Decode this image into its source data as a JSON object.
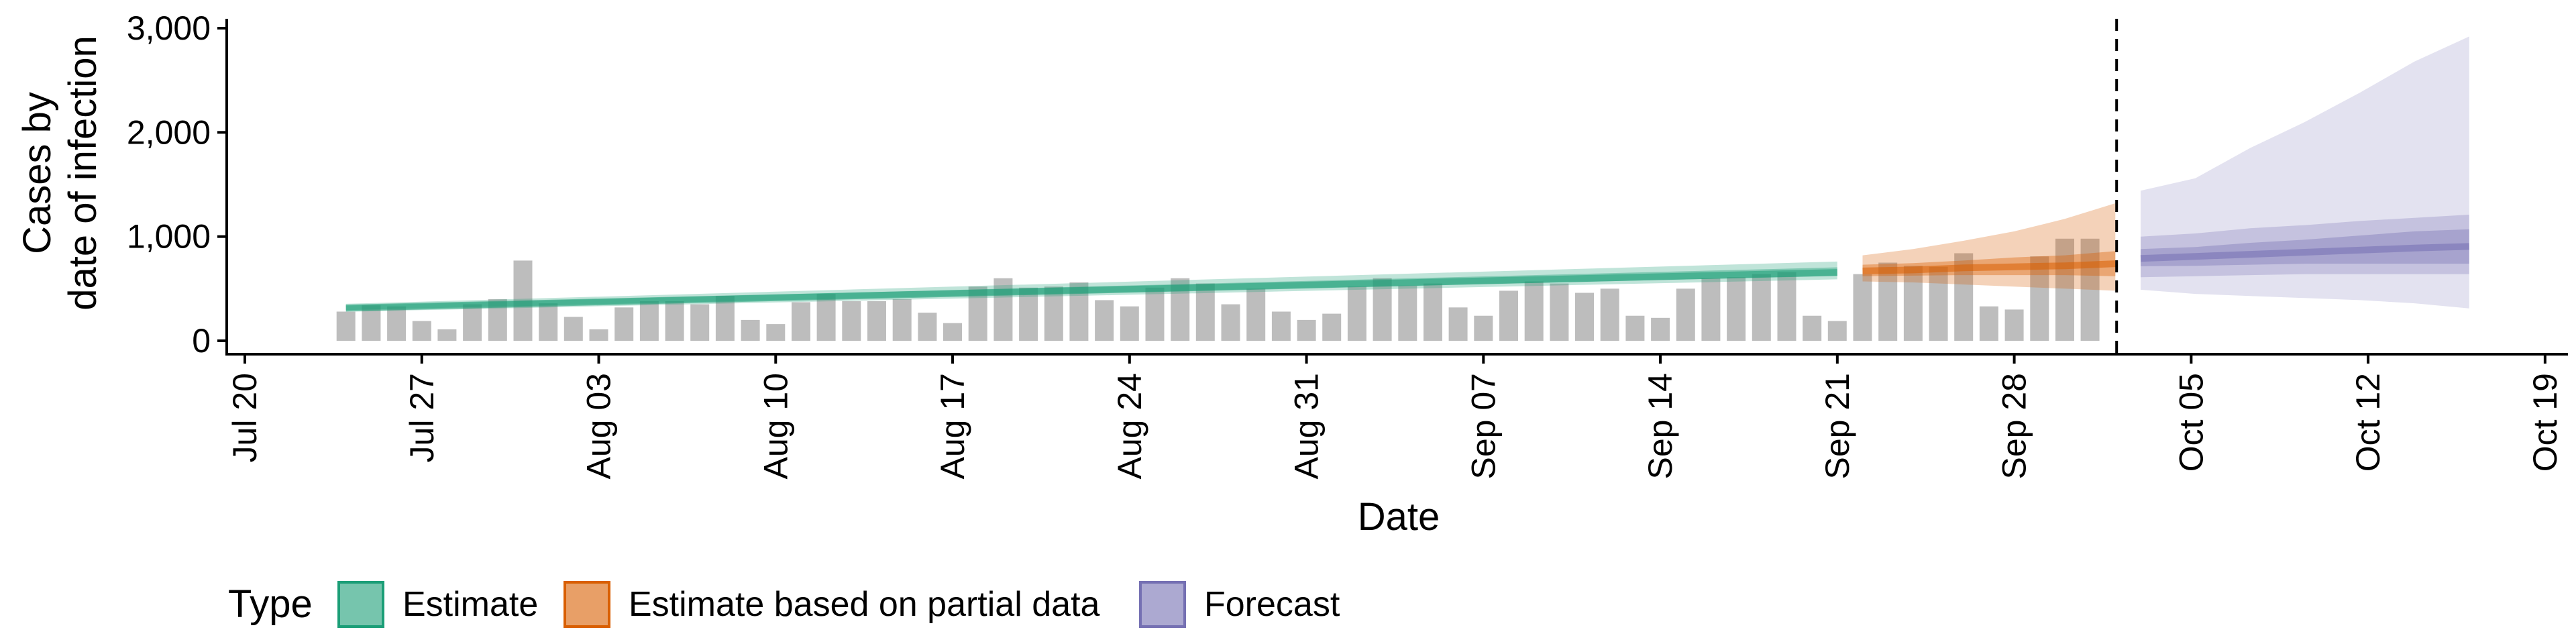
{
  "chart_data": {
    "type": "bar",
    "xlabel": "Date",
    "ylabel_lines": [
      "Cases by",
      "date of infection"
    ],
    "xlim": [
      "2020-07-19",
      "2020-10-19"
    ],
    "ylim": [
      0,
      3000
    ],
    "y_ticks": [
      0,
      1000,
      2000,
      3000
    ],
    "y_tick_labels": [
      "0",
      "1,000",
      "2,000",
      "3,000"
    ],
    "x_ticks": [
      "2020-07-20",
      "2020-07-27",
      "2020-08-03",
      "2020-08-10",
      "2020-08-17",
      "2020-08-24",
      "2020-08-31",
      "2020-09-07",
      "2020-09-14",
      "2020-09-21",
      "2020-09-28",
      "2020-10-05",
      "2020-10-12",
      "2020-10-19"
    ],
    "x_tick_labels": [
      "Jul 20",
      "Jul 27",
      "Aug 03",
      "Aug 10",
      "Aug 17",
      "Aug 24",
      "Aug 31",
      "Sep 07",
      "Sep 14",
      "Sep 21",
      "Sep 28",
      "Oct 05",
      "Oct 12",
      "Oct 19"
    ],
    "forecast_cutoff": "2020-10-02",
    "bars": {
      "start_date": "2020-07-24",
      "color": "#bdbdbd",
      "values": [
        280,
        340,
        330,
        190,
        110,
        350,
        400,
        770,
        360,
        230,
        110,
        320,
        380,
        380,
        350,
        430,
        200,
        160,
        370,
        450,
        380,
        380,
        400,
        270,
        170,
        520,
        600,
        510,
        520,
        560,
        390,
        330,
        510,
        600,
        550,
        350,
        500,
        280,
        200,
        260,
        520,
        600,
        530,
        550,
        320,
        240,
        480,
        570,
        550,
        460,
        500,
        240,
        220,
        500,
        600,
        610,
        640,
        660,
        240,
        190,
        640,
        750,
        720,
        710,
        840,
        330,
        300,
        810,
        980,
        980
      ]
    },
    "series": [
      {
        "name": "Estimate",
        "color": "#1b9e77",
        "start_date": "2020-07-24",
        "end_date": "2020-09-21",
        "median": [
          315,
          656
        ],
        "inner": [
          [
            295,
            338
          ],
          [
            622,
            705
          ]
        ],
        "outer": [
          [
            278,
            355
          ],
          [
            590,
            760
          ]
        ]
      },
      {
        "name": "Estimate based on partial data",
        "color": "#d95f02",
        "start_date": "2020-09-22",
        "end_date": "2020-10-02",
        "median": [
          [
            670,
            680,
            700,
            710,
            720,
            740
          ],
          [
            0,
            2,
            4,
            6,
            8,
            10
          ]
        ],
        "inner": [
          [
            620,
            730
          ],
          [
            625,
            745
          ],
          [
            630,
            770
          ],
          [
            630,
            800
          ],
          [
            630,
            820
          ],
          [
            620,
            860
          ]
        ],
        "outer": [
          [
            570,
            820
          ],
          [
            560,
            880
          ],
          [
            540,
            960
          ],
          [
            520,
            1050
          ],
          [
            500,
            1170
          ],
          [
            480,
            1320
          ]
        ]
      },
      {
        "name": "Forecast",
        "color": "#7570b3",
        "start_date": "2020-10-03",
        "end_date": "2020-10-16",
        "median": [
          790,
          810,
          830,
          850,
          870,
          890,
          905
        ],
        "inner": [
          [
            715,
            880
          ],
          [
            720,
            900
          ],
          [
            730,
            940
          ],
          [
            740,
            970
          ],
          [
            740,
            1010
          ],
          [
            740,
            1050
          ],
          [
            740,
            1070
          ]
        ],
        "outer": [
          [
            610,
            1000
          ],
          [
            620,
            1030
          ],
          [
            630,
            1080
          ],
          [
            640,
            1110
          ],
          [
            640,
            1150
          ],
          [
            640,
            1180
          ],
          [
            640,
            1210
          ]
        ],
        "outer90": [
          [
            490,
            1440
          ],
          [
            450,
            1560
          ],
          [
            430,
            1850
          ],
          [
            410,
            2100
          ],
          [
            390,
            2380
          ],
          [
            360,
            2680
          ],
          [
            310,
            2920
          ]
        ]
      }
    ],
    "legend": {
      "title": "Type",
      "placement": "bottom",
      "items": [
        {
          "label": "Estimate",
          "color": "#1b9e77"
        },
        {
          "label": "Estimate based on partial data",
          "color": "#d95f02"
        },
        {
          "label": "Forecast",
          "color": "#7570b3"
        }
      ]
    }
  }
}
